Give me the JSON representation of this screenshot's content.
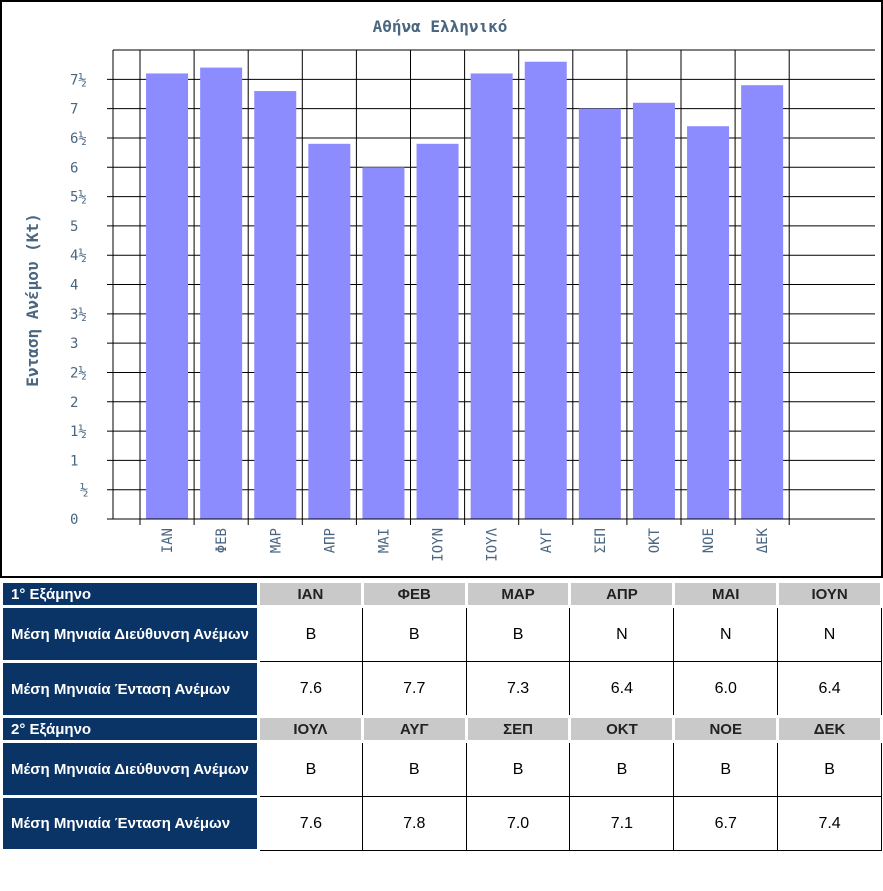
{
  "chart_data": {
    "type": "bar",
    "title": "Αθήνα Ελληνικό",
    "y_label": "Ενταση Ανέμου (Kt)",
    "categories": [
      "ΙΑΝ",
      "ΦΕΒ",
      "ΜΑΡ",
      "ΑΠΡ",
      "ΜΑΙ",
      "ΙΟΥΝ",
      "ΙΟΥΛ",
      "ΑΥΓ",
      "ΣΕΠ",
      "ΟΚΤ",
      "ΝΟΕ",
      "ΔΕΚ"
    ],
    "values": [
      7.6,
      7.7,
      7.3,
      6.4,
      6.0,
      6.4,
      7.6,
      7.8,
      7.0,
      7.1,
      6.7,
      7.4
    ],
    "color": "#8c8cff",
    "ylim": [
      0,
      8
    ],
    "yticks": [
      0,
      {
        "value": 0.5,
        "label": "½"
      },
      1,
      {
        "value": 1.5,
        "label": "1½"
      },
      2,
      {
        "value": 2.5,
        "label": "2½"
      },
      3,
      {
        "value": 3.5,
        "label": "3½"
      },
      4,
      {
        "value": 4.5,
        "label": "4½"
      },
      5,
      {
        "value": 5.5,
        "label": "5½"
      },
      6,
      {
        "value": 6.5,
        "label": "6½"
      },
      7,
      {
        "value": 7.5,
        "label": "7½"
      }
    ],
    "grid": true
  },
  "table": {
    "halves": [
      {
        "header": "1° Εξάμηνο",
        "months": [
          "ΙΑΝ",
          "ΦΕΒ",
          "ΜΑΡ",
          "ΑΠΡ",
          "ΜΑΙ",
          "ΙΟΥΝ"
        ],
        "rows": [
          {
            "label": "Μέση Μηνιαία Διεύθυνση Ανέμων",
            "cells": [
              "Β",
              "Β",
              "Β",
              "Ν",
              "Ν",
              "Ν"
            ]
          },
          {
            "label": "Μέση Μηνιαία Ένταση Ανέμων",
            "cells": [
              "7.6",
              "7.7",
              "7.3",
              "6.4",
              "6.0",
              "6.4"
            ]
          }
        ]
      },
      {
        "header": "2° Εξάμηνο",
        "months": [
          "ΙΟΥΛ",
          "ΑΥΓ",
          "ΣΕΠ",
          "ΟΚΤ",
          "ΝΟΕ",
          "ΔΕΚ"
        ],
        "rows": [
          {
            "label": "Μέση Μηνιαία Διεύθυνση Ανέμων",
            "cells": [
              "Β",
              "Β",
              "Β",
              "Β",
              "Β",
              "Β"
            ]
          },
          {
            "label": "Μέση Μηνιαία Ένταση Ανέμων",
            "cells": [
              "7.6",
              "7.8",
              "7.0",
              "7.1",
              "6.7",
              "7.4"
            ]
          }
        ]
      }
    ]
  }
}
